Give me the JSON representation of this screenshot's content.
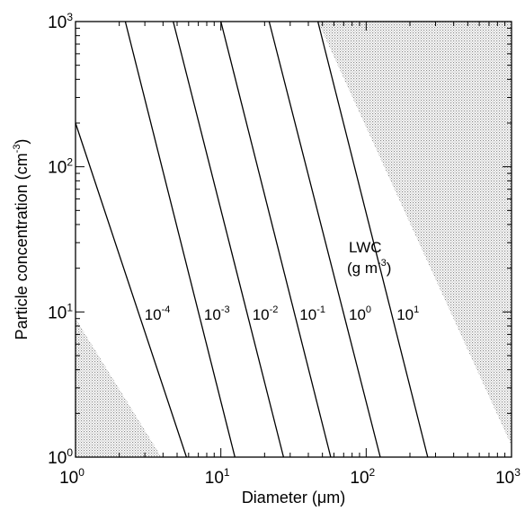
{
  "chart_data": {
    "type": "line",
    "xlabel": "Diameter (μm)",
    "ylabel": "Particle concentration (cm⁻³)",
    "xscale": "log",
    "yscale": "log",
    "xlim": [
      1,
      1000
    ],
    "ylim": [
      1,
      1000
    ],
    "grid": false,
    "x_ticks": [
      {
        "base": "10",
        "exp": "0"
      },
      {
        "base": "10",
        "exp": "1"
      },
      {
        "base": "10",
        "exp": "2"
      },
      {
        "base": "10",
        "exp": "3"
      }
    ],
    "y_ticks": [
      {
        "base": "10",
        "exp": "0"
      },
      {
        "base": "10",
        "exp": "1"
      },
      {
        "base": "10",
        "exp": "2"
      },
      {
        "base": "10",
        "exp": "3"
      }
    ],
    "series": [
      {
        "label_base": "10",
        "label_exp": "-4",
        "points": [
          [
            1.0,
            200
          ],
          [
            5.8,
            1
          ]
        ]
      },
      {
        "label_base": "10",
        "label_exp": "-3",
        "points": [
          [
            2.2,
            1000
          ],
          [
            12.5,
            1
          ]
        ]
      },
      {
        "label_base": "10",
        "label_exp": "-2",
        "points": [
          [
            4.7,
            1000
          ],
          [
            27,
            1
          ]
        ]
      },
      {
        "label_base": "10",
        "label_exp": "-1",
        "points": [
          [
            10,
            1000
          ],
          [
            57,
            1
          ]
        ]
      },
      {
        "label_base": "10",
        "label_exp": "0",
        "points": [
          [
            21.5,
            1000
          ],
          [
            125,
            1
          ]
        ]
      },
      {
        "label_base": "10",
        "label_exp": "1",
        "points": [
          [
            46.5,
            1000
          ],
          [
            265,
            1
          ]
        ]
      }
    ],
    "shaded_regions": [
      {
        "points": [
          [
            1,
            9
          ],
          [
            1,
            1
          ],
          [
            3.9,
            1
          ]
        ]
      },
      {
        "points": [
          [
            46.5,
            1000
          ],
          [
            1000,
            1000
          ],
          [
            1000,
            1.2
          ]
        ]
      }
    ],
    "annotation": {
      "line1": "LWC",
      "line2_text": "(g m",
      "line2_exp": "-3",
      "line2_close": ")"
    }
  }
}
